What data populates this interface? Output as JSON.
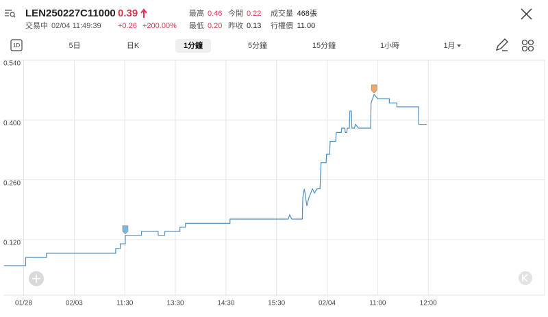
{
  "header": {
    "symbol": "LEN250227C11000",
    "price": "0.39",
    "status": "交易中",
    "timestamp": "02/04 11:49:39",
    "change": "+0.26",
    "change_percent": "+200.00%",
    "stats": [
      {
        "label": "最高",
        "value": "0.46",
        "color": "#e0344c"
      },
      {
        "label": "今開",
        "value": "0.22",
        "color": "#e0344c"
      },
      {
        "label": "成交量",
        "value": "468張",
        "color": "#222222"
      },
      {
        "label": "最低",
        "value": "0.20",
        "color": "#e0344c"
      },
      {
        "label": "昨收",
        "value": "0.13",
        "color": "#222222"
      },
      {
        "label": "行權價",
        "value": "11.00",
        "color": "#222222"
      }
    ]
  },
  "tabs": [
    {
      "label": "1D",
      "selected": false
    },
    {
      "label": "5日",
      "selected": false
    },
    {
      "label": "日K",
      "selected": false
    },
    {
      "label": "1分鐘",
      "selected": true
    },
    {
      "label": "5分鐘",
      "selected": false
    },
    {
      "label": "15分鐘",
      "selected": false
    },
    {
      "label": "1小時",
      "selected": false
    },
    {
      "label": "1月",
      "selected": false
    }
  ],
  "chart_data": {
    "type": "line",
    "color": "#4a8fc6",
    "x": [
      -0.39,
      0.04,
      0.04,
      0.45,
      0.45,
      1.82,
      1.82,
      1.91,
      1.91,
      2.01,
      2.01,
      2.33,
      2.33,
      2.66,
      2.66,
      2.79,
      2.79,
      3.09,
      3.09,
      3.2,
      3.2,
      4.08,
      4.08,
      5.23,
      5.26,
      5.3,
      5.51,
      5.52,
      5.55,
      5.6,
      5.64,
      5.71,
      5.75,
      5.8,
      5.86,
      5.88,
      5.98,
      5.99,
      6.05,
      6.06,
      6.17,
      6.18,
      6.28,
      6.29,
      6.35,
      6.36,
      6.39,
      6.4,
      6.44,
      6.45,
      6.48,
      6.49,
      6.54,
      6.56,
      6.62,
      6.86,
      6.87,
      6.93,
      7.0,
      7.23,
      7.23,
      7.38,
      7.38,
      7.81,
      7.81,
      7.97
    ],
    "values": [
      0.059,
      0.059,
      0.078,
      0.078,
      0.088,
      0.088,
      0.099,
      0.099,
      0.11,
      0.11,
      0.13,
      0.13,
      0.139,
      0.139,
      0.13,
      0.13,
      0.139,
      0.139,
      0.149,
      0.149,
      0.158,
      0.158,
      0.168,
      0.168,
      0.178,
      0.168,
      0.168,
      0.218,
      0.239,
      0.199,
      0.218,
      0.239,
      0.229,
      0.239,
      0.239,
      0.3,
      0.3,
      0.32,
      0.32,
      0.35,
      0.35,
      0.371,
      0.371,
      0.381,
      0.381,
      0.371,
      0.371,
      0.381,
      0.381,
      0.421,
      0.421,
      0.381,
      0.381,
      0.39,
      0.381,
      0.381,
      0.44,
      0.46,
      0.45,
      0.45,
      0.44,
      0.44,
      0.431,
      0.431,
      0.39,
      0.39
    ],
    "markers": [
      {
        "x": 2.01,
        "y": 0.13,
        "color": "#7fb6dc"
      },
      {
        "x": 6.93,
        "y": 0.46,
        "color": "#f2a867"
      }
    ],
    "xlim": [
      -0.4,
      10.3
    ],
    "xticks": [
      {
        "value": 0,
        "label": "01/28"
      },
      {
        "value": 1,
        "label": "02/03"
      },
      {
        "value": 2,
        "label": "11:30"
      },
      {
        "value": 3,
        "label": "13:30"
      },
      {
        "value": 4,
        "label": "14:30"
      },
      {
        "value": 5,
        "label": "15:30"
      },
      {
        "value": 6,
        "label": "02/04"
      },
      {
        "value": 7,
        "label": "11:00"
      },
      {
        "value": 8,
        "label": "12:00"
      }
    ],
    "ylim": [
      -0.01,
      0.54
    ],
    "yticks": [
      {
        "value": 0.54,
        "label": "0.540"
      },
      {
        "value": 0.4,
        "label": "0.400"
      },
      {
        "value": 0.26,
        "label": "0.260"
      },
      {
        "value": 0.12,
        "label": "0.120"
      }
    ],
    "grid": true
  }
}
